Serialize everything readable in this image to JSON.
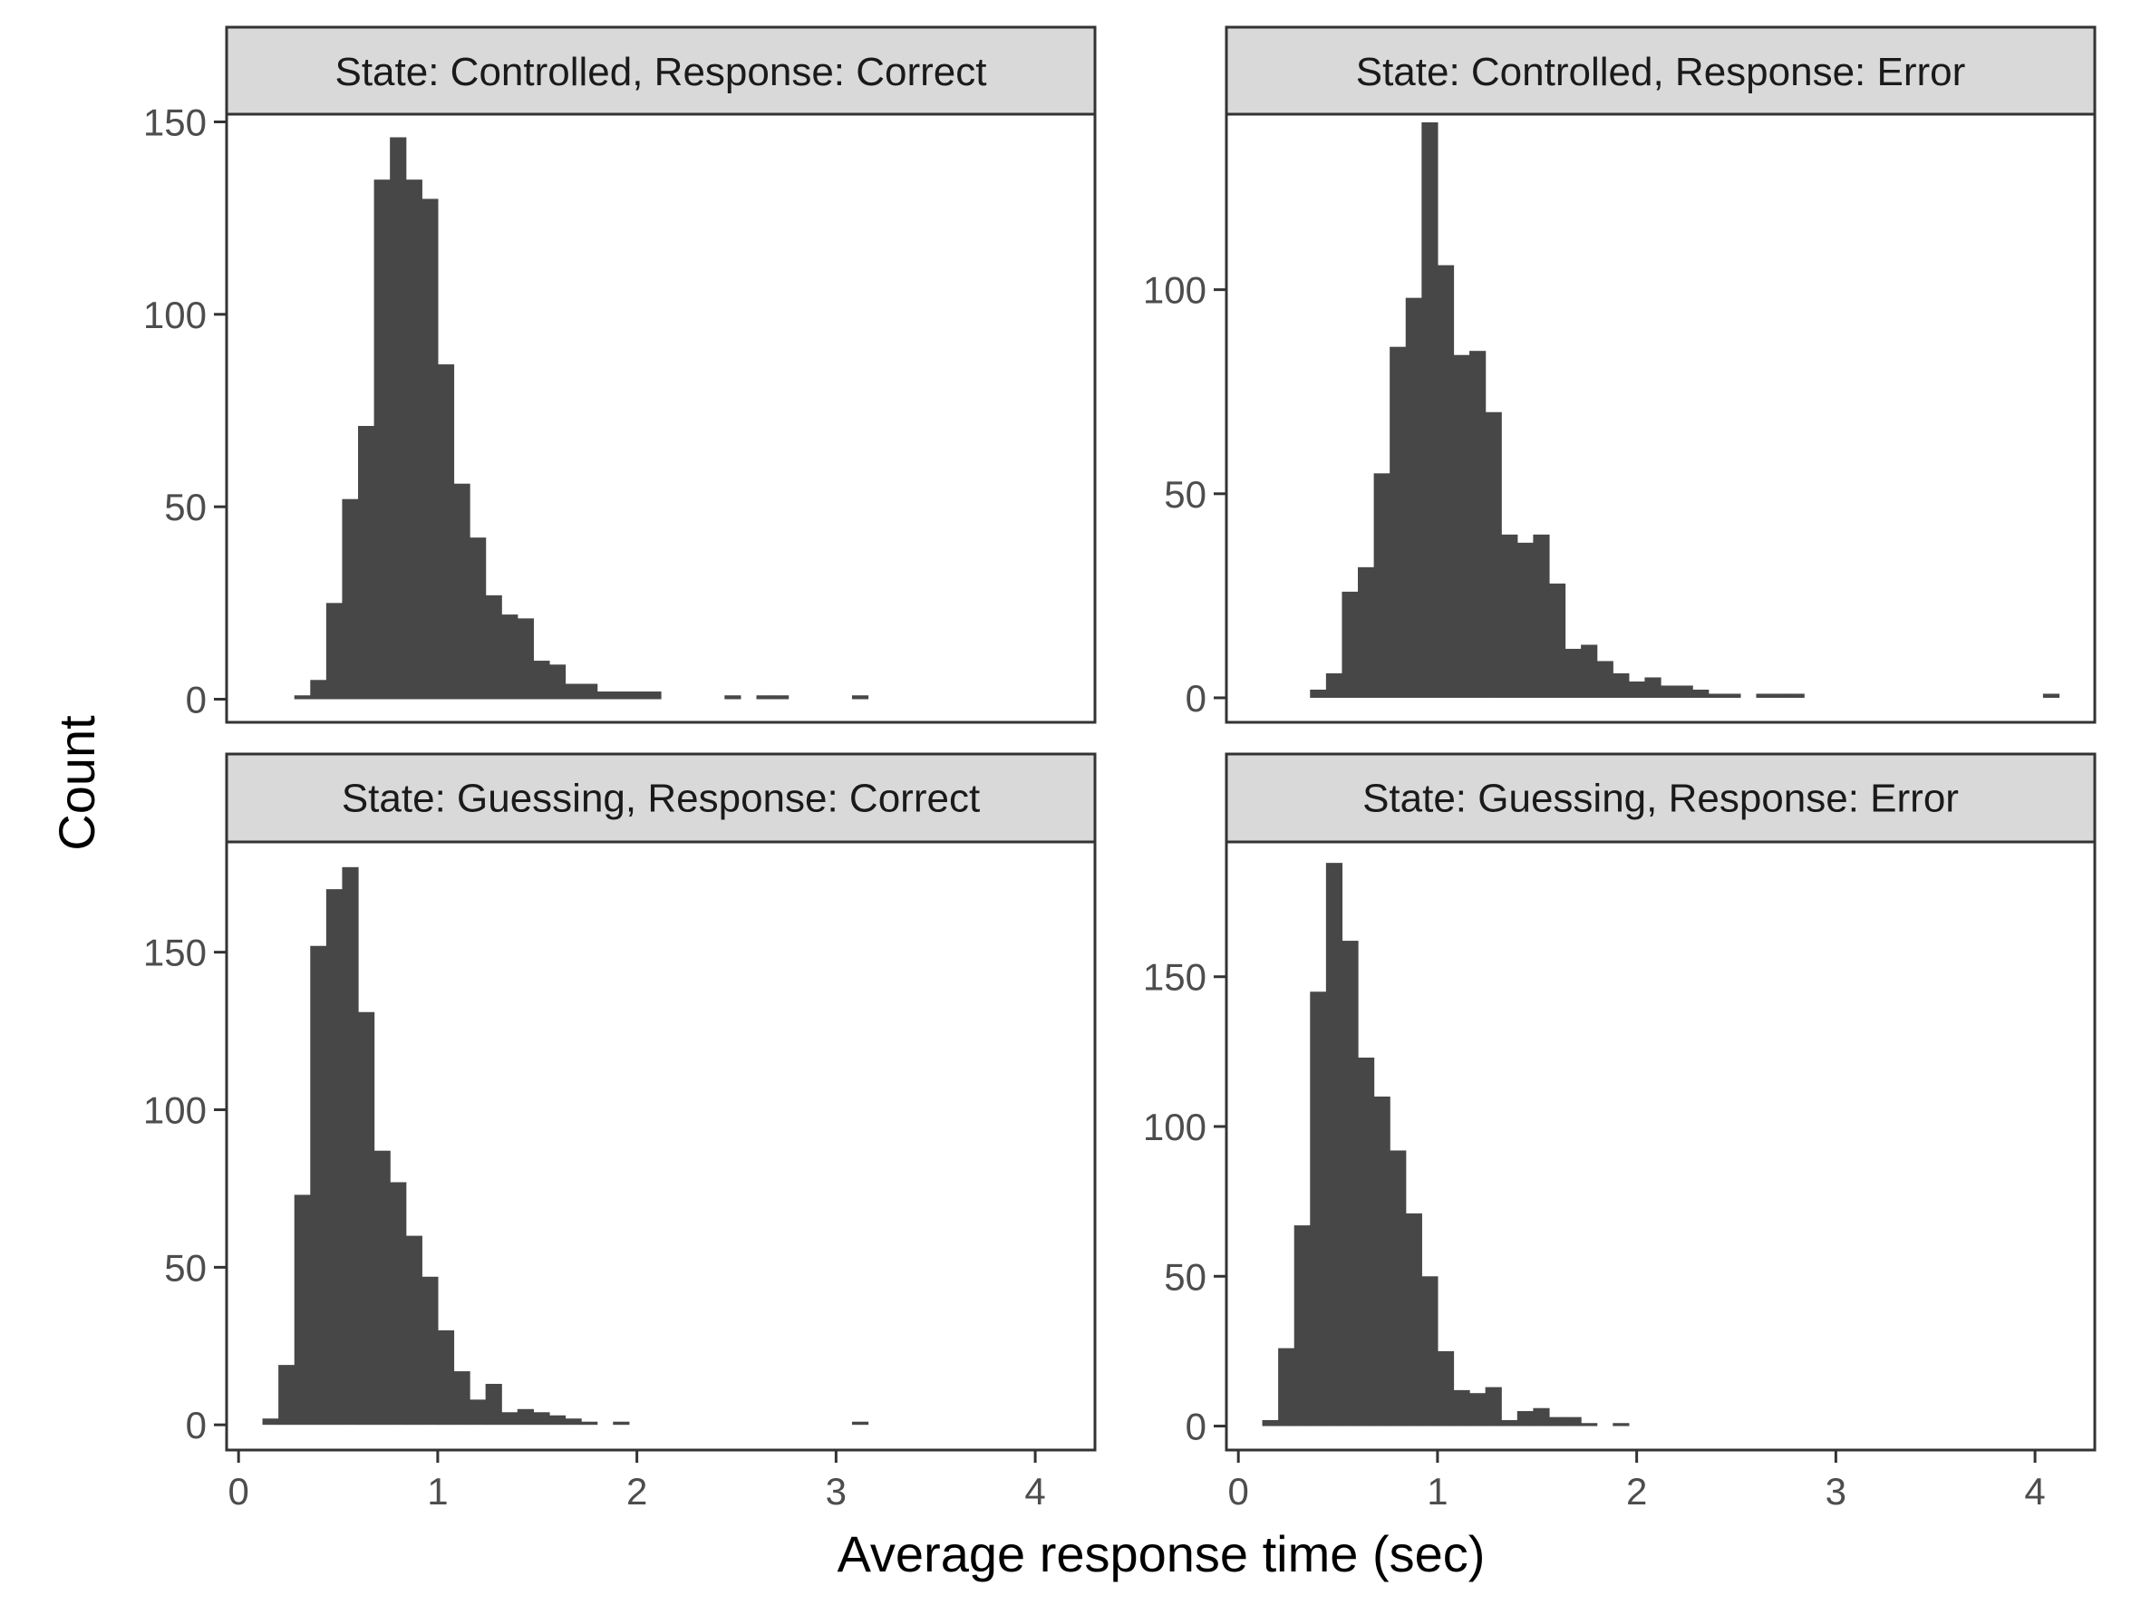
{
  "chart_data": {
    "type": "bar",
    "subtype": "histogram-facet-grid",
    "xlabel": "Average response time (sec)",
    "ylabel": "Count",
    "bar_color": "#474747",
    "strip_fill": "#d9d9d9",
    "panel_border": "#333333",
    "grid": false,
    "bin_width": 0.08,
    "xlim": [
      -0.06,
      4.3
    ],
    "x_ticks": [
      0,
      1,
      2,
      3,
      4
    ],
    "x_tick_labels": [
      "0",
      "1",
      "2",
      "3",
      "4"
    ],
    "panels": [
      {
        "strip_label": "State: Controlled, Response: Correct",
        "ylim": [
          -6,
          152
        ],
        "y_ticks": [
          0,
          50,
          100,
          150
        ],
        "y_tick_labels": [
          "0",
          "50",
          "100",
          "150"
        ],
        "show_x_axis": false,
        "bins": [
          [
            0.28,
            1
          ],
          [
            0.36,
            5
          ],
          [
            0.44,
            25
          ],
          [
            0.52,
            52
          ],
          [
            0.6,
            71
          ],
          [
            0.68,
            135
          ],
          [
            0.76,
            146
          ],
          [
            0.84,
            135
          ],
          [
            0.92,
            130
          ],
          [
            1.0,
            87
          ],
          [
            1.08,
            56
          ],
          [
            1.16,
            42
          ],
          [
            1.24,
            27
          ],
          [
            1.32,
            22
          ],
          [
            1.4,
            21
          ],
          [
            1.48,
            10
          ],
          [
            1.56,
            9
          ],
          [
            1.64,
            4
          ],
          [
            1.72,
            4
          ],
          [
            1.8,
            2
          ],
          [
            1.88,
            2
          ],
          [
            1.96,
            2
          ],
          [
            2.04,
            2
          ],
          [
            2.44,
            1
          ],
          [
            2.6,
            1
          ],
          [
            2.68,
            1
          ],
          [
            3.08,
            1
          ]
        ]
      },
      {
        "strip_label": "State: Controlled, Response: Error",
        "ylim": [
          -6,
          143
        ],
        "y_ticks": [
          0,
          50,
          100
        ],
        "y_tick_labels": [
          "0",
          "50",
          "100"
        ],
        "show_x_axis": false,
        "bins": [
          [
            0.36,
            2
          ],
          [
            0.44,
            6
          ],
          [
            0.52,
            26
          ],
          [
            0.6,
            32
          ],
          [
            0.68,
            55
          ],
          [
            0.76,
            86
          ],
          [
            0.84,
            98
          ],
          [
            0.92,
            141
          ],
          [
            1.0,
            106
          ],
          [
            1.08,
            84
          ],
          [
            1.16,
            85
          ],
          [
            1.24,
            70
          ],
          [
            1.32,
            40
          ],
          [
            1.4,
            38
          ],
          [
            1.48,
            40
          ],
          [
            1.56,
            28
          ],
          [
            1.64,
            12
          ],
          [
            1.72,
            13
          ],
          [
            1.8,
            9
          ],
          [
            1.88,
            6
          ],
          [
            1.96,
            4
          ],
          [
            2.04,
            5
          ],
          [
            2.12,
            3
          ],
          [
            2.2,
            3
          ],
          [
            2.28,
            2
          ],
          [
            2.36,
            1
          ],
          [
            2.44,
            1
          ],
          [
            2.6,
            1
          ],
          [
            2.68,
            1
          ],
          [
            2.76,
            1
          ],
          [
            4.04,
            1
          ]
        ]
      },
      {
        "strip_label": "State: Guessing, Response: Correct",
        "ylim": [
          -8,
          185
        ],
        "y_ticks": [
          0,
          50,
          100,
          150
        ],
        "y_tick_labels": [
          "0",
          "50",
          "100",
          "150"
        ],
        "show_x_axis": true,
        "bins": [
          [
            0.12,
            2
          ],
          [
            0.2,
            19
          ],
          [
            0.28,
            73
          ],
          [
            0.36,
            152
          ],
          [
            0.44,
            170
          ],
          [
            0.52,
            177
          ],
          [
            0.6,
            131
          ],
          [
            0.68,
            87
          ],
          [
            0.76,
            77
          ],
          [
            0.84,
            60
          ],
          [
            0.92,
            47
          ],
          [
            1.0,
            30
          ],
          [
            1.08,
            17
          ],
          [
            1.16,
            8
          ],
          [
            1.24,
            13
          ],
          [
            1.32,
            4
          ],
          [
            1.4,
            5
          ],
          [
            1.48,
            4
          ],
          [
            1.56,
            3
          ],
          [
            1.64,
            2
          ],
          [
            1.72,
            1
          ],
          [
            1.88,
            1
          ],
          [
            3.08,
            1
          ]
        ]
      },
      {
        "strip_label": "State: Guessing, Response: Error",
        "ylim": [
          -8,
          195
        ],
        "y_ticks": [
          0,
          50,
          100,
          150
        ],
        "y_tick_labels": [
          "0",
          "50",
          "100",
          "150"
        ],
        "show_x_axis": true,
        "bins": [
          [
            0.12,
            2
          ],
          [
            0.2,
            26
          ],
          [
            0.28,
            67
          ],
          [
            0.36,
            145
          ],
          [
            0.44,
            188
          ],
          [
            0.52,
            162
          ],
          [
            0.6,
            123
          ],
          [
            0.68,
            110
          ],
          [
            0.76,
            92
          ],
          [
            0.84,
            71
          ],
          [
            0.92,
            50
          ],
          [
            1.0,
            25
          ],
          [
            1.08,
            12
          ],
          [
            1.16,
            11
          ],
          [
            1.24,
            13
          ],
          [
            1.32,
            2
          ],
          [
            1.4,
            5
          ],
          [
            1.48,
            6
          ],
          [
            1.56,
            3
          ],
          [
            1.64,
            3
          ],
          [
            1.72,
            1
          ],
          [
            1.88,
            1
          ]
        ]
      }
    ]
  }
}
